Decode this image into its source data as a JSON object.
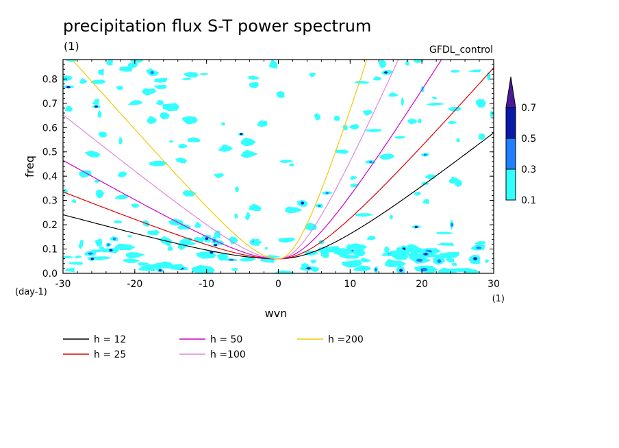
{
  "chart_data": {
    "type": "contour",
    "title": "precipitation flux S-T power spectrum",
    "units_label": "(1)",
    "dataset_label": "GFDL_control",
    "xlabel": "wvn",
    "ylabel": "freq",
    "x_units": "(1)",
    "y_units": "(day-1)",
    "xlim": [
      -30,
      30
    ],
    "ylim": [
      0,
      0.88
    ],
    "x_ticks": [
      -30,
      -20,
      -10,
      0,
      10,
      20,
      30
    ],
    "x_tick_labels": [
      "-30",
      "-20",
      "-10",
      "0",
      "10",
      "20",
      "30"
    ],
    "y_ticks": [
      0,
      0.1,
      0.2,
      0.3,
      0.4,
      0.5,
      0.6,
      0.7,
      0.8
    ],
    "y_tick_labels": [
      "0.0",
      "0.1",
      "0.2",
      "0.3",
      "0.4",
      "0.5",
      "0.6",
      "0.7",
      "0.8"
    ],
    "colorbar": {
      "levels": [
        0.1,
        0.3,
        0.5,
        0.7
      ],
      "labels": [
        "0.1",
        "0.3",
        "0.5",
        "0.7"
      ],
      "colors": [
        "#33ffff",
        "#1f7fff",
        "#0a1aa8",
        "#4a1a9a"
      ]
    },
    "series": [
      {
        "name": "h = 12",
        "color": "#000000",
        "h": 12
      },
      {
        "name": "h = 25",
        "color": "#dd0000",
        "h": 25
      },
      {
        "name": "h = 50",
        "color": "#cc00cc",
        "h": 50
      },
      {
        "name": "h =100",
        "color": "#dd88dd",
        "h": 100
      },
      {
        "name": "h =200",
        "color": "#eecc00",
        "h": 200
      }
    ]
  }
}
